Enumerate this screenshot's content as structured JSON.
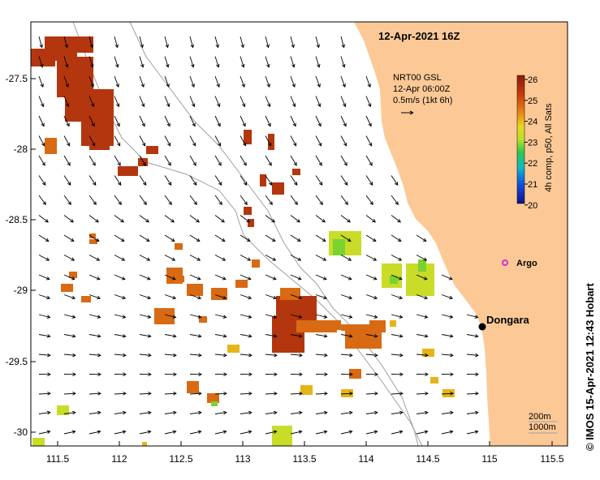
{
  "title": "12-Apr-2021 16Z",
  "current_note": {
    "line1": "NRT00 GSL",
    "line2": "12-Apr 06:00Z",
    "line3": "0.5m/s (1kt 6h)"
  },
  "colorbar": {
    "label": "4h comp, p50, All Sats",
    "ticks": [
      "26",
      "25",
      "24",
      "23",
      "22",
      "21",
      "20"
    ],
    "min": 20,
    "max": 26
  },
  "places": {
    "town": "Dongara",
    "float": "Argo"
  },
  "contours": {
    "a": "200m",
    "b": "1000m"
  },
  "credit": "©  IMOS 15-Apr-2021 12:43 Hobart",
  "axes": {
    "x_ticks": [
      "111.5",
      "112",
      "112.5",
      "113",
      "113.5",
      "114",
      "114.5",
      "115",
      "115.5"
    ],
    "y_ticks": [
      "-27.5",
      "-28",
      "-28.5",
      "-29",
      "-29.5",
      "-30"
    ]
  },
  "colors": {
    "land": "#fcc996",
    "hot": "#b4360e",
    "warm": "#d86a14",
    "mid": "#e6b418",
    "cool": "#c8dc28",
    "green": "#7ad230",
    "arrow": "#000000"
  }
}
